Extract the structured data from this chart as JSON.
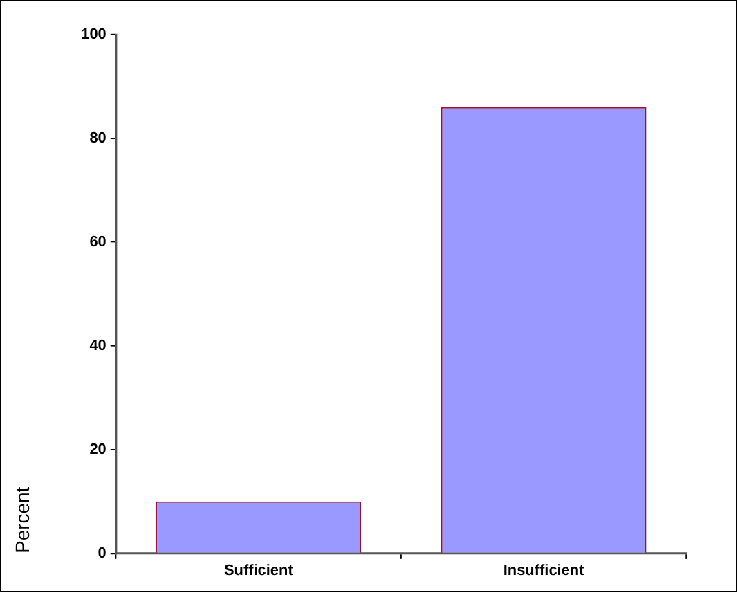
{
  "chart_data": {
    "type": "bar",
    "ylabel": "Percent",
    "categories": [
      "Sufficient",
      "Insufficient"
    ],
    "values": [
      10,
      86
    ],
    "color": "#9999ff",
    "ylim": [
      0,
      100
    ],
    "yticks": [
      0,
      20,
      40,
      60,
      80,
      100
    ],
    "legend": false
  }
}
